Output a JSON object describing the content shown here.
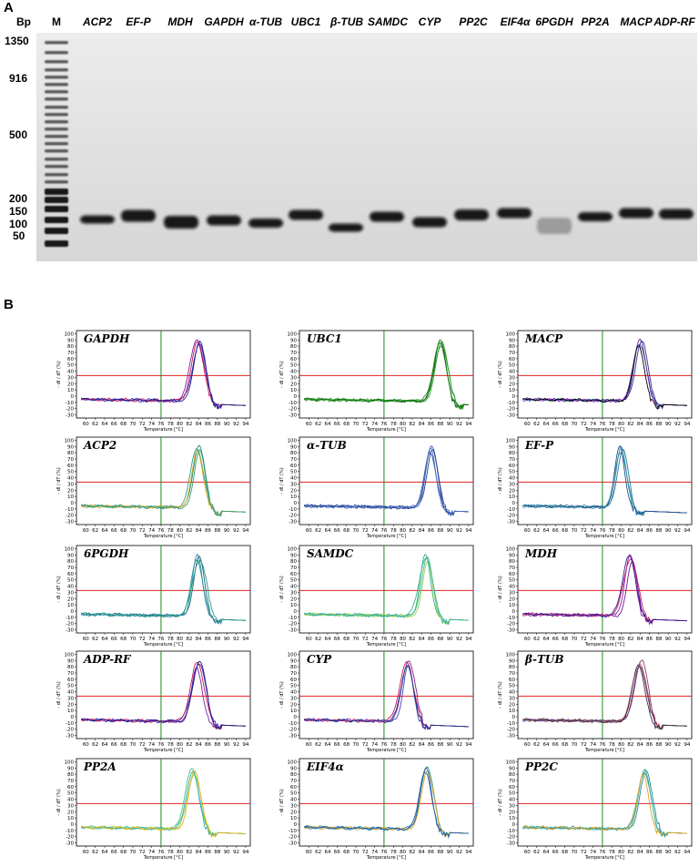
{
  "panelA": {
    "letter": "A",
    "bp_header": "Bp",
    "marker_header": "M",
    "bp_labels": [
      "1350",
      "916",
      "500",
      "200",
      "150",
      "100",
      "50"
    ],
    "lanes": [
      "ACP2",
      "EF-P",
      "MDH",
      "GAPDH",
      "α-TUB",
      "UBC1",
      "β-TUB",
      "SAMDC",
      "CYP",
      "PP2C",
      "EIF4α",
      "6PGDH",
      "PP2A",
      "MACP",
      "ADP-RF"
    ]
  },
  "panelB": {
    "letter": "B",
    "x_axis_label": "Temperature [°C]",
    "y_axis_label": "- dI / dT (%)",
    "x_ticks": [
      "60",
      "62",
      "64",
      "66",
      "68",
      "70",
      "72",
      "74",
      "76",
      "78",
      "80",
      "82",
      "84",
      "86",
      "88",
      "90",
      "92",
      "94"
    ],
    "y_ticks": [
      "100",
      "90",
      "80",
      "70",
      "60",
      "50",
      "40",
      "30",
      "20",
      "10",
      "0",
      "-10",
      "-20",
      "-30"
    ],
    "threshold_color": "#e02020",
    "vline_color": "#1a8a1a"
  },
  "chart_data": [
    {
      "type": "line",
      "gene": "GAPDH",
      "peak_temp": 84,
      "threshold": 33,
      "vline_temp": 76,
      "colors": [
        "#7b1fa2",
        "#3b22c7",
        "#c2185b",
        "#1a237e"
      ]
    },
    {
      "type": "line",
      "gene": "UBC1",
      "peak_temp": 88,
      "threshold": 33,
      "vline_temp": 76,
      "colors": [
        "#1b8a1b",
        "#2e7d32",
        "#33a02c",
        "#0a6e0a"
      ]
    },
    {
      "type": "line",
      "gene": "MACP",
      "peak_temp": 84,
      "threshold": 33,
      "vline_temp": 76,
      "colors": [
        "#3949ab",
        "#1e3a8a",
        "#7b1fa2",
        "#000000"
      ]
    },
    {
      "type": "line",
      "gene": "ACP2",
      "peak_temp": 84,
      "threshold": 33,
      "vline_temp": 76,
      "colors": [
        "#2e9e8a",
        "#1f8f78",
        "#e0a020",
        "#3aa070"
      ]
    },
    {
      "type": "line",
      "gene": "α-TUB",
      "peak_temp": 86,
      "threshold": 33,
      "vline_temp": 76,
      "colors": [
        "#3c5fb4",
        "#2c4a9e",
        "#1f3c88",
        "#4a6fc0"
      ]
    },
    {
      "type": "line",
      "gene": "EF-P",
      "peak_temp": 80,
      "threshold": 33,
      "vline_temp": 76,
      "colors": [
        "#2a9d8f",
        "#1f7f9a",
        "#3a86b4",
        "#264d8a"
      ]
    },
    {
      "type": "line",
      "gene": "6PGDH",
      "peak_temp": 84,
      "threshold": 33,
      "vline_temp": 76,
      "colors": [
        "#2a9d8f",
        "#1c6e6e",
        "#3a86b4",
        "#22968a"
      ]
    },
    {
      "type": "line",
      "gene": "SAMDC",
      "peak_temp": 85,
      "threshold": 33,
      "vline_temp": 76,
      "colors": [
        "#4cbf8a",
        "#2eb07a",
        "#9ad14a",
        "#3ab0a0"
      ]
    },
    {
      "type": "line",
      "gene": "MDH",
      "peak_temp": 82,
      "threshold": 33,
      "vline_temp": 76,
      "colors": [
        "#8e24aa",
        "#6a1b9a",
        "#c2185b",
        "#311b92"
      ]
    },
    {
      "type": "line",
      "gene": "ADP-RF",
      "peak_temp": 84,
      "threshold": 33,
      "vline_temp": 76,
      "colors": [
        "#7b1fa2",
        "#3b22c7",
        "#c2185b",
        "#1a237e"
      ]
    },
    {
      "type": "line",
      "gene": "CYP",
      "peak_temp": 81,
      "threshold": 33,
      "vline_temp": 76,
      "colors": [
        "#3949ab",
        "#c2185b",
        "#7b1fa2",
        "#1e3a8a"
      ]
    },
    {
      "type": "line",
      "gene": "β-TUB",
      "peak_temp": 84,
      "threshold": 33,
      "vline_temp": 76,
      "colors": [
        "#b23a48",
        "#8e3b5c",
        "#5a3b8a",
        "#3a3a3a"
      ]
    },
    {
      "type": "line",
      "gene": "PP2A",
      "peak_temp": 83,
      "threshold": 33,
      "vline_temp": 76,
      "colors": [
        "#4cbf8a",
        "#9ad14a",
        "#2eb0a0",
        "#e0b020"
      ]
    },
    {
      "type": "line",
      "gene": "EIF4α",
      "peak_temp": 85,
      "threshold": 33,
      "vline_temp": 76,
      "colors": [
        "#2a9d8f",
        "#2c6fb4",
        "#e0a020",
        "#1f5a9a"
      ]
    },
    {
      "type": "line",
      "gene": "PP2C",
      "peak_temp": 85,
      "threshold": 33,
      "vline_temp": 76,
      "colors": [
        "#2a9d8f",
        "#1f8f9a",
        "#3ab0a0",
        "#e0a020"
      ]
    }
  ]
}
